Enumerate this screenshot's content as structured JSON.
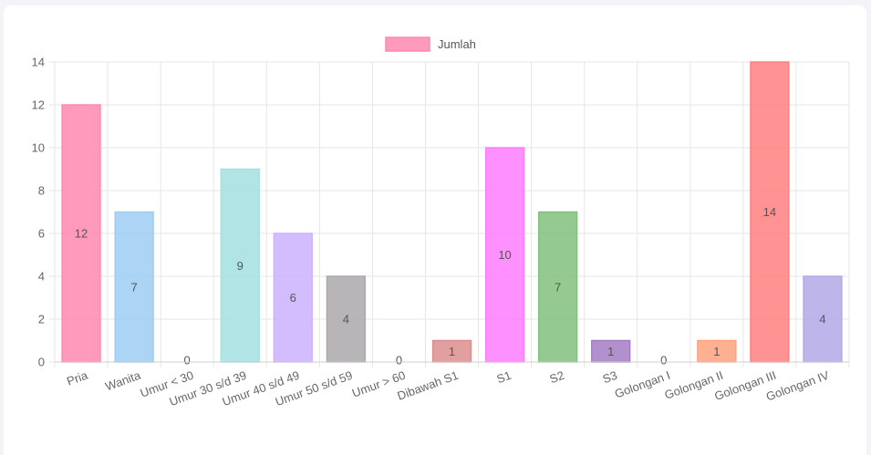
{
  "chart_data": {
    "type": "bar",
    "categories": [
      "Pria",
      "Wanita",
      "Umur < 30",
      "Umur 30 s/d 39",
      "Umur 40 s/d 49",
      "Umur 50 s/d 59",
      "Umur > 60",
      "Dibawah S1",
      "S1",
      "S2",
      "S3",
      "Golongan I",
      "Golongan II",
      "Golongan III",
      "Golongan IV"
    ],
    "series": [
      {
        "name": "Jumlah",
        "values": [
          12,
          7,
          0,
          9,
          6,
          4,
          0,
          1,
          10,
          7,
          1,
          0,
          1,
          14,
          4
        ]
      }
    ],
    "bar_colors": [
      "#ff88b0",
      "#9dcdf2",
      "#ffd58a",
      "#a3e1e1",
      "#cdb1ff",
      "#aca8ac",
      "#ffd58a",
      "#dc8e8e",
      "#ff7dff",
      "#81c07f",
      "#a47cc4",
      "#c8e6c8",
      "#ffa27d",
      "#ff7f7f",
      "#b3a9e6"
    ],
    "legend_color": "#ff88b0",
    "title": "",
    "xlabel": "",
    "ylabel": "",
    "ylim": [
      0,
      14
    ],
    "yticks": [
      0,
      2,
      4,
      6,
      8,
      10,
      12,
      14
    ],
    "grid": true,
    "legend_position": "top-center"
  }
}
